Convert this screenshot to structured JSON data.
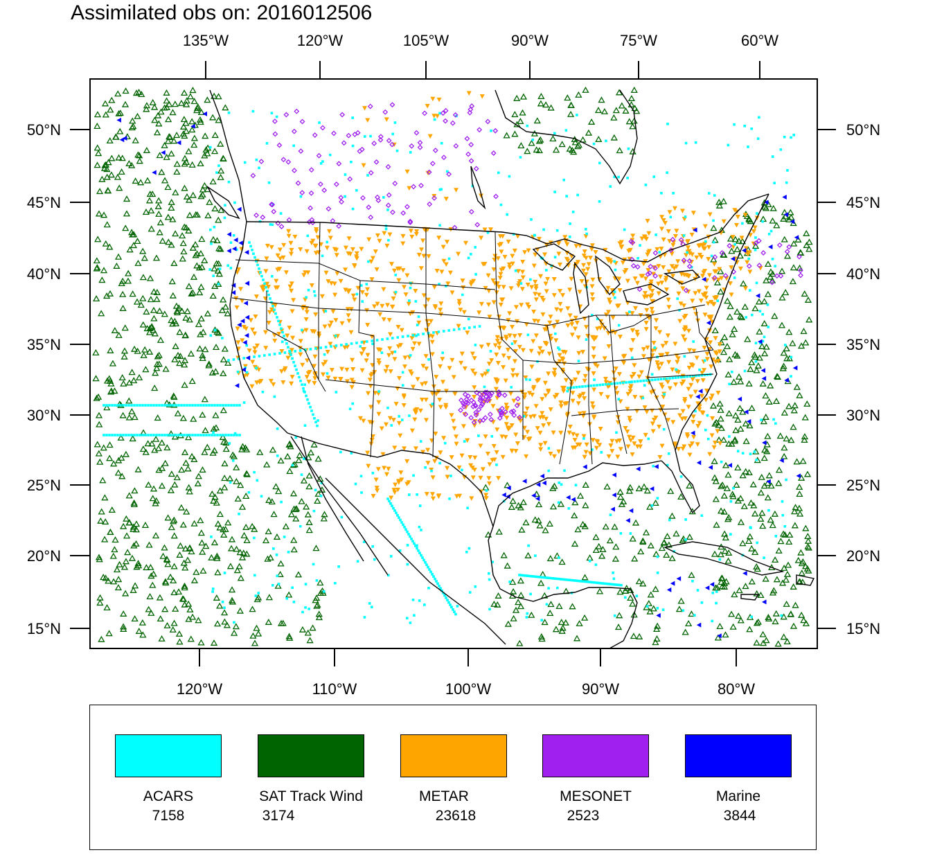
{
  "title": "Assimilated obs on: 2016012506",
  "top_lon_labels": [
    "135°W",
    "120°W",
    "105°W",
    "90°W",
    "75°W",
    "60°W"
  ],
  "bottom_lon_labels": [
    "120°W",
    "110°W",
    "100°W",
    "90°W",
    "80°W"
  ],
  "lat_labels": [
    "50°N",
    "45°N",
    "40°N",
    "35°N",
    "30°N",
    "25°N",
    "20°N",
    "15°N"
  ],
  "colors": {
    "ACARS": "#00ffff",
    "SAT Track Wind": "#006400",
    "METAR": "#ffa500",
    "MESONET": "#a020f0",
    "Marine": "#0000ff",
    "coastline": "#000000"
  },
  "legend": [
    {
      "name": "ACARS",
      "count": "7158",
      "color": "#00ffff"
    },
    {
      "name": "SAT Track Wind",
      "count": "3174",
      "color": "#006400"
    },
    {
      "name": "METAR",
      "count": "23618",
      "color": "#ffa500"
    },
    {
      "name": "MESONET",
      "count": "2523",
      "color": "#a020f0"
    },
    {
      "name": "Marine",
      "count": "3844",
      "color": "#0000ff"
    }
  ]
}
